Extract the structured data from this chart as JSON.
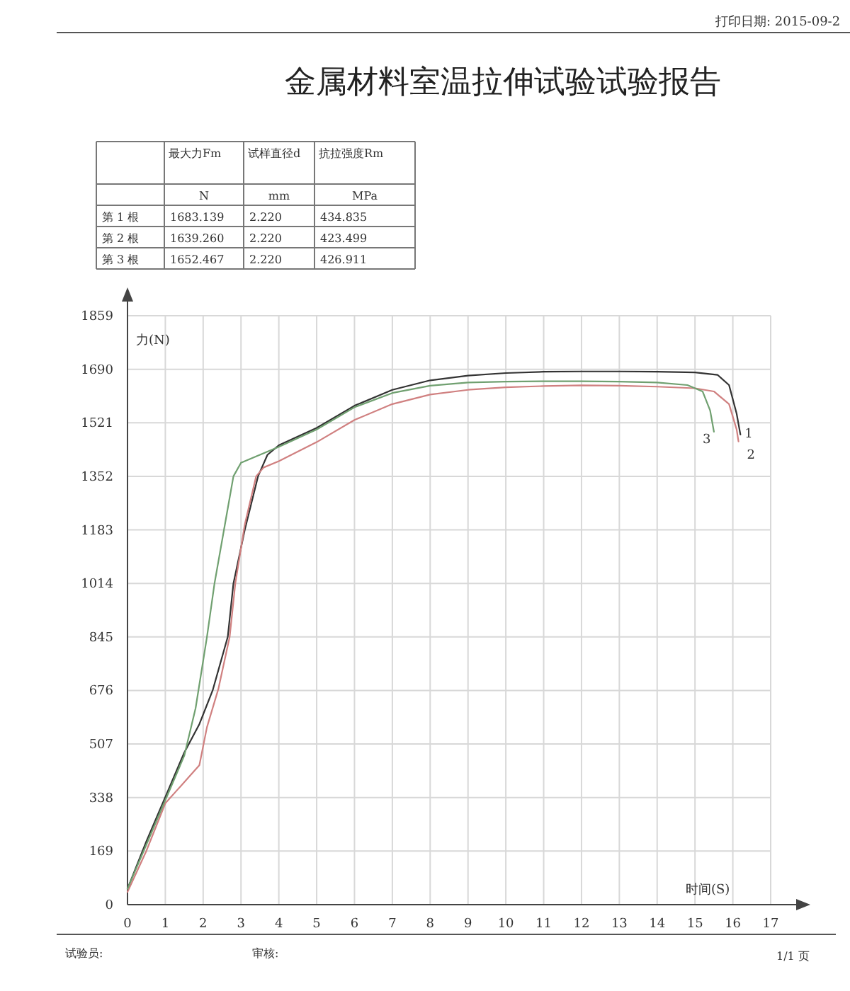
{
  "chart_data": {
    "type": "line",
    "title": "金属材料室温拉伸试验试验报告",
    "xlabel": "时间(S)",
    "ylabel": "力(N)",
    "annotations": [
      "打印日期: 2015-09-2",
      "试验员:",
      "审核:",
      "1/1 页",
      "最大力Fm",
      "试样直径d",
      "抗拉强度Rm",
      "N",
      "mm",
      "MPa",
      "第 1 根",
      "1683.139",
      "2.220",
      "434.835",
      "第 2 根",
      "1639.260",
      "2.220",
      "423.499",
      "第 3 根",
      "1652.467",
      "2.220",
      "426.911"
    ],
    "xlim": [
      0,
      17
    ],
    "xticks": [
      0,
      1,
      2,
      3,
      4,
      5,
      6,
      7,
      8,
      9,
      10,
      11,
      12,
      13,
      14,
      15,
      16,
      17
    ],
    "ylim": [
      0,
      1859
    ],
    "yticks": [
      0,
      169,
      338,
      507,
      676,
      845,
      1014,
      1183,
      1352,
      1521,
      1690,
      1859
    ],
    "grid": true,
    "marker": "none",
    "line_style": "solid",
    "series": [
      {
        "name": "1",
        "color": "#333333",
        "x": [
          0,
          0.5,
          1,
          1.5,
          1.9,
          2.25,
          2.65,
          2.8,
          3.1,
          3.45,
          3.7,
          4,
          5,
          6,
          7,
          8,
          9,
          10,
          11,
          12,
          13,
          14,
          15,
          15.6,
          15.9,
          16.1,
          16.2
        ],
        "values": [
          50,
          200,
          340,
          480,
          570,
          676,
          845,
          1014,
          1183,
          1352,
          1420,
          1450,
          1505,
          1575,
          1625,
          1655,
          1670,
          1678,
          1682,
          1683,
          1683,
          1682,
          1680,
          1672,
          1640,
          1550,
          1484
        ]
      },
      {
        "name": "2",
        "color": "#d08080",
        "x": [
          0,
          0.5,
          1,
          1.3,
          1.6,
          1.9,
          2.1,
          2.4,
          2.7,
          2.85,
          3.1,
          3.4,
          3.6,
          4,
          5,
          6,
          7,
          8,
          9,
          10,
          11,
          12,
          13,
          14,
          15,
          15.5,
          15.9,
          16.1,
          16.15
        ],
        "values": [
          40,
          170,
          320,
          360,
          400,
          440,
          560,
          680,
          845,
          1014,
          1200,
          1352,
          1380,
          1400,
          1460,
          1530,
          1580,
          1610,
          1625,
          1633,
          1637,
          1639,
          1638,
          1635,
          1630,
          1620,
          1580,
          1500,
          1462
        ]
      },
      {
        "name": "3",
        "color": "#70a070",
        "x": [
          0,
          0.5,
          1,
          1.5,
          1.8,
          2.1,
          2.3,
          2.55,
          2.8,
          3,
          3.5,
          4,
          5,
          6,
          7,
          8,
          9,
          10,
          11,
          12,
          13,
          14,
          14.8,
          15.2,
          15.4,
          15.5
        ],
        "values": [
          50,
          190,
          330,
          470,
          620,
          845,
          1014,
          1183,
          1352,
          1395,
          1420,
          1445,
          1500,
          1570,
          1615,
          1638,
          1648,
          1651,
          1652,
          1652,
          1651,
          1648,
          1640,
          1620,
          1560,
          1493
        ]
      }
    ]
  }
}
